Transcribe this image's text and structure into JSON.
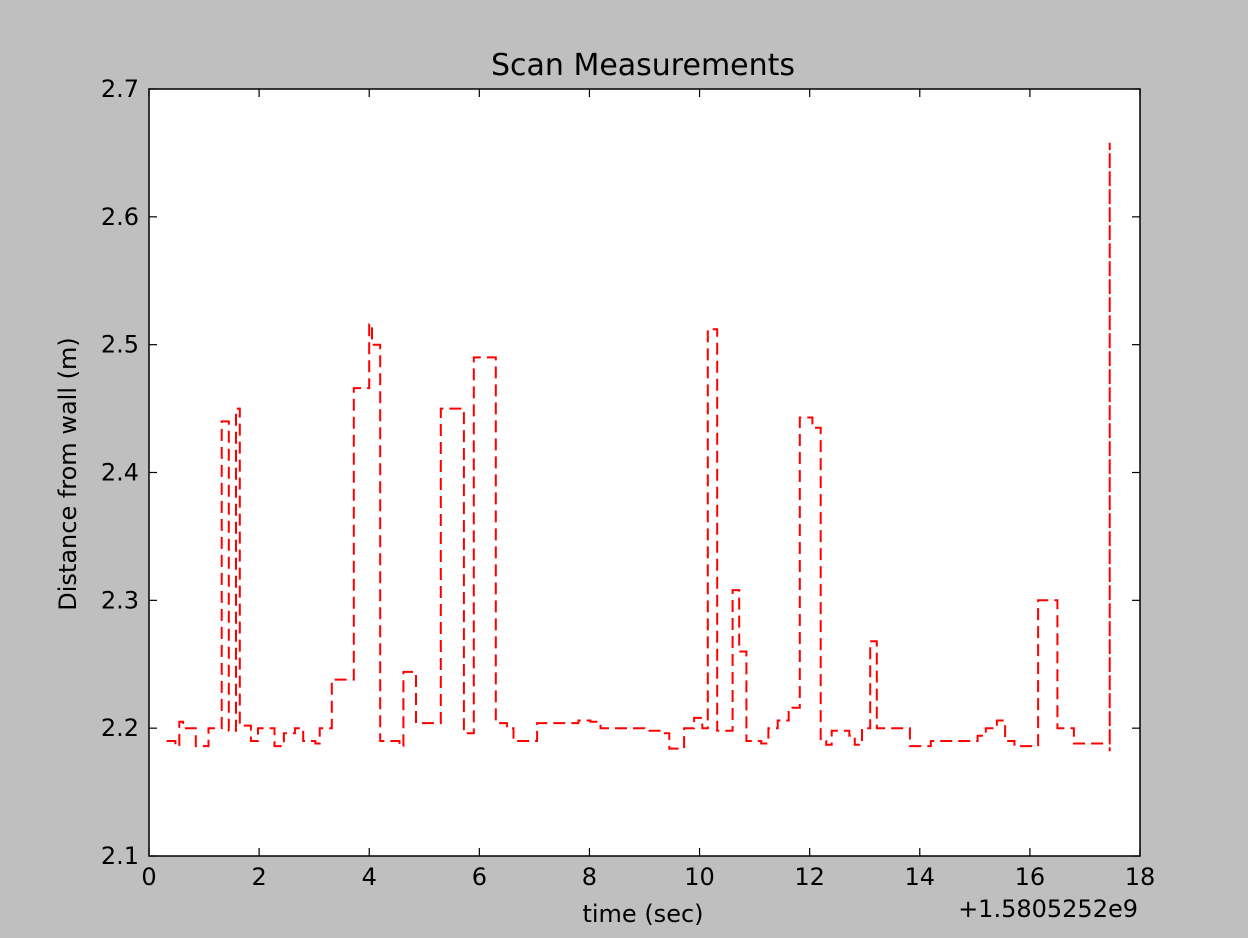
{
  "chart_data": {
    "type": "line",
    "title": "Scan Measurements",
    "xlabel": "time (sec)",
    "ylabel": "Distance from wall (m)",
    "x_offset_label": "+1.5805252e9",
    "xlim": [
      0,
      18
    ],
    "ylim": [
      2.1,
      2.7
    ],
    "x_ticks": [
      0,
      2,
      4,
      6,
      8,
      10,
      12,
      14,
      16,
      18
    ],
    "y_ticks": [
      2.1,
      2.2,
      2.3,
      2.4,
      2.5,
      2.6,
      2.7
    ],
    "x_tick_labels": [
      "0",
      "2",
      "4",
      "6",
      "8",
      "10",
      "12",
      "14",
      "16",
      "18"
    ],
    "y_tick_labels": [
      "2.1",
      "2.2",
      "2.3",
      "2.4",
      "2.5",
      "2.6",
      "2.7"
    ],
    "grid": false,
    "legend": "none",
    "series": [
      {
        "color": "#ff0000",
        "line_style": "dashed",
        "draw_style": "steps",
        "x": [
          0.32,
          0.48,
          0.55,
          0.62,
          0.85,
          1.08,
          1.32,
          1.45,
          1.58,
          1.65,
          1.85,
          1.98,
          2.28,
          2.45,
          2.65,
          2.8,
          3.02,
          3.1,
          3.32,
          3.62,
          3.72,
          3.9,
          4.0,
          4.05,
          4.2,
          4.55,
          4.62,
          4.8,
          4.85,
          5.12,
          5.3,
          5.5,
          5.72,
          5.9,
          6.05,
          6.15,
          6.3,
          6.5,
          6.62,
          6.95,
          7.05,
          7.2,
          7.5,
          7.8,
          8.02,
          8.2,
          8.5,
          8.8,
          9.0,
          9.3,
          9.45,
          9.6,
          9.72,
          9.9,
          10.05,
          10.15,
          10.32,
          10.5,
          10.6,
          10.72,
          10.85,
          10.95,
          11.12,
          11.25,
          11.42,
          11.62,
          11.82,
          12.05,
          12.2,
          12.3,
          12.4,
          12.5,
          12.72,
          12.82,
          12.95,
          13.1,
          13.22,
          13.35,
          13.62,
          13.82,
          14.05,
          14.2,
          14.5,
          14.9,
          15.05,
          15.2,
          15.4,
          15.55,
          15.72,
          15.95,
          16.15,
          16.3,
          16.5,
          16.8,
          17.05,
          17.25,
          17.45
        ],
        "y": [
          2.19,
          2.186,
          2.205,
          2.2,
          2.186,
          2.2,
          2.44,
          2.198,
          2.45,
          2.202,
          2.19,
          2.2,
          2.186,
          2.196,
          2.2,
          2.19,
          2.188,
          2.2,
          2.238,
          2.238,
          2.466,
          2.466,
          2.516,
          2.5,
          2.19,
          2.186,
          2.244,
          2.244,
          2.204,
          2.204,
          2.45,
          2.45,
          2.196,
          2.49,
          2.49,
          2.49,
          2.204,
          2.2,
          2.19,
          2.19,
          2.204,
          2.204,
          2.204,
          2.206,
          2.205,
          2.2,
          2.2,
          2.2,
          2.198,
          2.196,
          2.184,
          2.184,
          2.2,
          2.208,
          2.2,
          2.512,
          2.198,
          2.198,
          2.308,
          2.26,
          2.19,
          2.19,
          2.188,
          2.2,
          2.206,
          2.216,
          2.443,
          2.435,
          2.19,
          2.187,
          2.198,
          2.198,
          2.194,
          2.187,
          2.2,
          2.268,
          2.2,
          2.2,
          2.2,
          2.186,
          2.186,
          2.19,
          2.19,
          2.19,
          2.194,
          2.2,
          2.206,
          2.19,
          2.186,
          2.186,
          2.3,
          2.3,
          2.2,
          2.188,
          2.188,
          2.188,
          2.658
        ]
      }
    ]
  }
}
